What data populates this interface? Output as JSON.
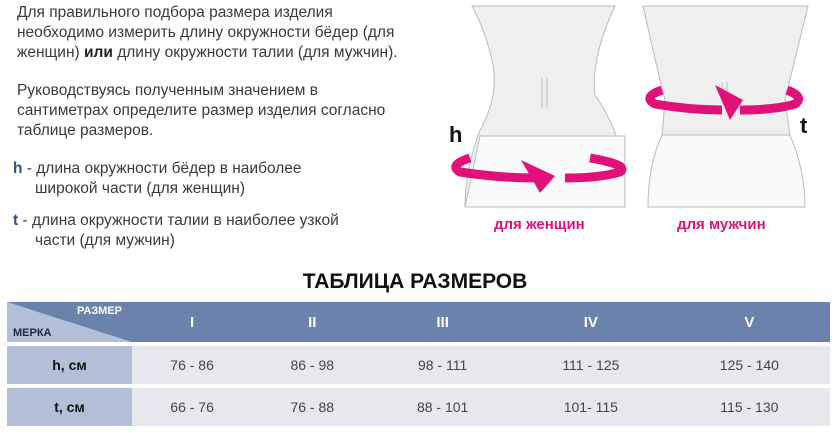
{
  "intro": {
    "line1": "Для правильного подбора размера изделия",
    "line2": "необходимо измерить длину окружности бёдер (для",
    "line3a": "женщин) ",
    "line3b": "или",
    "line3c": " длину окружности талии (для мужчин)."
  },
  "guide": {
    "line1": "Руководствуясь полученным значением в",
    "line2": "сантиметрах определите размер изделия согласно",
    "line3": "таблице размеров."
  },
  "legend": [
    {
      "key": "h",
      "line1": " - длина окружности бёдер в наиболее",
      "line2": "широкой части (для женщин)"
    },
    {
      "key": "t",
      "line1": " - длина окружности талии в наиболее узкой",
      "line2": "части (для мужчин)"
    }
  ],
  "figures": {
    "women_label": "для женщин",
    "men_label": "для мужчин",
    "h": "h",
    "t": "t",
    "accent": "#e0127a"
  },
  "table": {
    "title": "ТАБЛИЦА РАЗМЕРОВ",
    "corner_top": "РАЗМЕР",
    "corner_bottom": "МЕРКА",
    "sizes": [
      "I",
      "II",
      "III",
      "IV",
      "V"
    ],
    "rows": [
      {
        "label": "h, см",
        "values": [
          "76 - 86",
          "86 - 98",
          "98 - 111",
          "111 - 125",
          "125 - 140"
        ]
      },
      {
        "label": "t, см",
        "values": [
          "66 - 76",
          "76 - 88",
          "88 - 101",
          "101- 115",
          "115 - 130"
        ]
      }
    ]
  }
}
